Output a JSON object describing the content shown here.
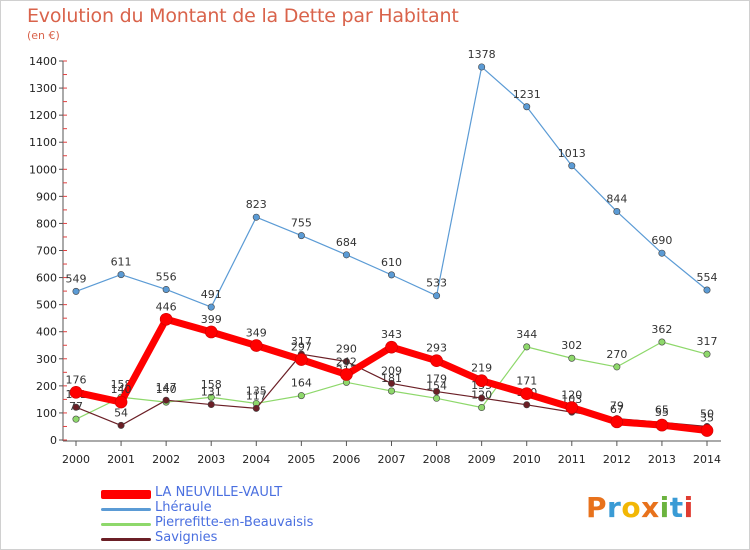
{
  "title": "Evolution du Montant de la Dette par Habitant",
  "unit": "(en €)",
  "logo": {
    "text": "Proxiti",
    "colors": [
      "#e8721c",
      "#3a9bd5",
      "#f2b705",
      "#e8721c",
      "#6cb33f",
      "#3a9bd5",
      "#e03c31"
    ]
  },
  "chart_data": {
    "type": "line",
    "x": [
      "2000",
      "2001",
      "2002",
      "2003",
      "2004",
      "2005",
      "2006",
      "2007",
      "2008",
      "2009",
      "2010",
      "2011",
      "2012",
      "2013",
      "2014"
    ],
    "ylim": [
      0,
      1400
    ],
    "yticks": [
      0,
      100,
      200,
      300,
      400,
      500,
      600,
      700,
      800,
      900,
      1000,
      1100,
      1200,
      1300,
      1400
    ],
    "grid": false,
    "legend": "bottom-left",
    "series": [
      {
        "name": "Lhéraule",
        "color": "#5b9bd5",
        "width": 1.2,
        "values": [
          549,
          611,
          556,
          491,
          823,
          755,
          684,
          610,
          533,
          1378,
          1231,
          1013,
          844,
          690,
          554
        ],
        "labels": [
          "549",
          "611",
          "556",
          "491",
          "823",
          "755",
          "684",
          "610",
          "533",
          "1378",
          "1231",
          "1013",
          "844",
          "690",
          "554"
        ]
      },
      {
        "name": "Pierrefitte-en-Beauvaisis",
        "color": "#8ed86b",
        "width": 1.2,
        "values": [
          77,
          158,
          140,
          158,
          135,
          164,
          213,
          181,
          154,
          120,
          344,
          302,
          270,
          362,
          317
        ],
        "labels": [
          "77",
          "158",
          "140",
          "158",
          "135",
          "164",
          "213",
          "181",
          "154",
          "120",
          "344",
          "302",
          "270",
          "362",
          "317"
        ]
      },
      {
        "name": "Savignies",
        "color": "#6b1f26",
        "width": 1.2,
        "values": [
          121,
          54,
          147,
          131,
          117,
          317,
          290,
          209,
          179,
          155,
          130,
          103,
          79,
          65,
          50
        ],
        "labels": [
          "121",
          "54",
          "147",
          "131",
          "117",
          "317",
          "290",
          "209",
          "179",
          "155",
          "130",
          "103",
          "79",
          "65",
          "50"
        ]
      },
      {
        "name": "LA NEUVILLE-VAULT",
        "color": "#ff0000",
        "width": 7,
        "values": [
          176,
          140,
          446,
          399,
          349,
          297,
          242,
          343,
          293,
          219,
          171,
          120,
          67,
          55,
          35
        ],
        "labels": [
          "176",
          "140",
          "446",
          "399",
          "349",
          "297",
          "242",
          "343",
          "293",
          "219",
          "171",
          "120",
          "67",
          "55",
          "35"
        ]
      }
    ],
    "legend_order": [
      "LA NEUVILLE-VAULT",
      "Lhéraule",
      "Pierrefitte-en-Beauvaisis",
      "Savignies"
    ]
  }
}
